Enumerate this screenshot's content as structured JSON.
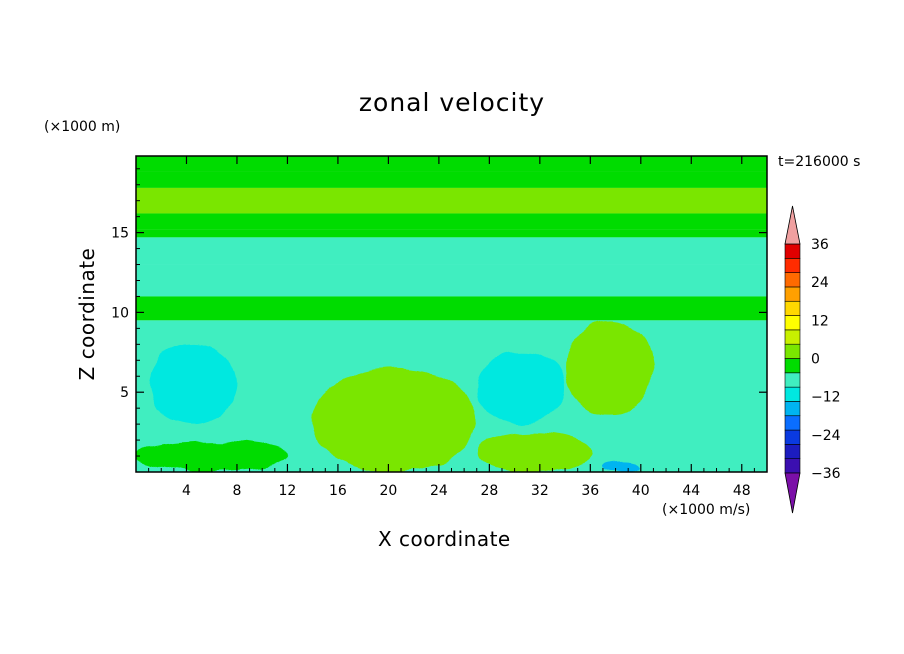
{
  "chart_data": {
    "type": "heatmap",
    "title": "zonal velocity",
    "xlabel": "X coordinate",
    "ylabel": "Z coordinate",
    "x_unit": "(×1000 m/s)",
    "y_unit": "(×1000 m)",
    "time_label": "t=216000 s",
    "xlim": [
      0,
      50
    ],
    "ylim": [
      0,
      19.8
    ],
    "x_ticks": [
      4,
      8,
      12,
      16,
      20,
      24,
      28,
      32,
      36,
      40,
      44,
      48
    ],
    "y_ticks": [
      5,
      10,
      15
    ],
    "colorbar": {
      "labels": [
        "36",
        "24",
        "12",
        "0",
        "-12",
        "-24",
        "-36"
      ],
      "label_values": [
        36,
        24,
        12,
        0,
        -12,
        -24,
        -36
      ],
      "range": [
        -42,
        42
      ],
      "step": 6,
      "colors": [
        "#7b0fa8",
        "#3b0fb0",
        "#1c1cbf",
        "#0a3ae0",
        "#0a6eff",
        "#00b4f0",
        "#00e8e0",
        "#40eec0",
        "#00dc00",
        "#7ae600",
        "#c8f000",
        "#ffff00",
        "#ffd800",
        "#ffa000",
        "#ff6a00",
        "#ff2c00",
        "#e00000",
        "#f0a0a0"
      ]
    },
    "bands_by_height": [
      {
        "z_range": [
          18.8,
          19.8
        ],
        "level": 0
      },
      {
        "z_range": [
          17.8,
          18.8
        ],
        "level": 3
      },
      {
        "z_range": [
          16.2,
          17.8
        ],
        "level": 9
      },
      {
        "z_range": [
          15.2,
          16.2
        ],
        "level": 3
      },
      {
        "z_range": [
          14.7,
          15.2
        ],
        "level": 0
      },
      {
        "z_range": [
          13.0,
          14.7
        ],
        "level": -6
      },
      {
        "z_range": [
          11.0,
          13.0
        ],
        "level": -3
      },
      {
        "z_range": [
          9.5,
          11.0
        ],
        "level": 3
      },
      {
        "z_range": [
          0,
          9.5
        ],
        "level": -3
      }
    ],
    "features": [
      {
        "name": "lower-left jet",
        "x": [
          0,
          12
        ],
        "z": [
          0,
          2
        ],
        "level": 3
      },
      {
        "name": "rising shear layer",
        "x": [
          14,
          27
        ],
        "z": [
          0,
          6.5
        ],
        "level": 9
      },
      {
        "name": "surface jet",
        "x": [
          27,
          36
        ],
        "z": [
          0,
          2.5
        ],
        "level": 9
      },
      {
        "name": "right uplift",
        "x": [
          34,
          41
        ],
        "z": [
          3.5,
          9.5
        ],
        "level": 9
      },
      {
        "name": "left low",
        "x": [
          1,
          8
        ],
        "z": [
          3,
          8
        ],
        "level": -9
      },
      {
        "name": "central low",
        "x": [
          27,
          34
        ],
        "z": [
          3,
          7.5
        ],
        "level": -9
      },
      {
        "name": "near-surface low",
        "x": [
          37,
          40
        ],
        "z": [
          0,
          0.6
        ],
        "level": -15
      }
    ]
  }
}
